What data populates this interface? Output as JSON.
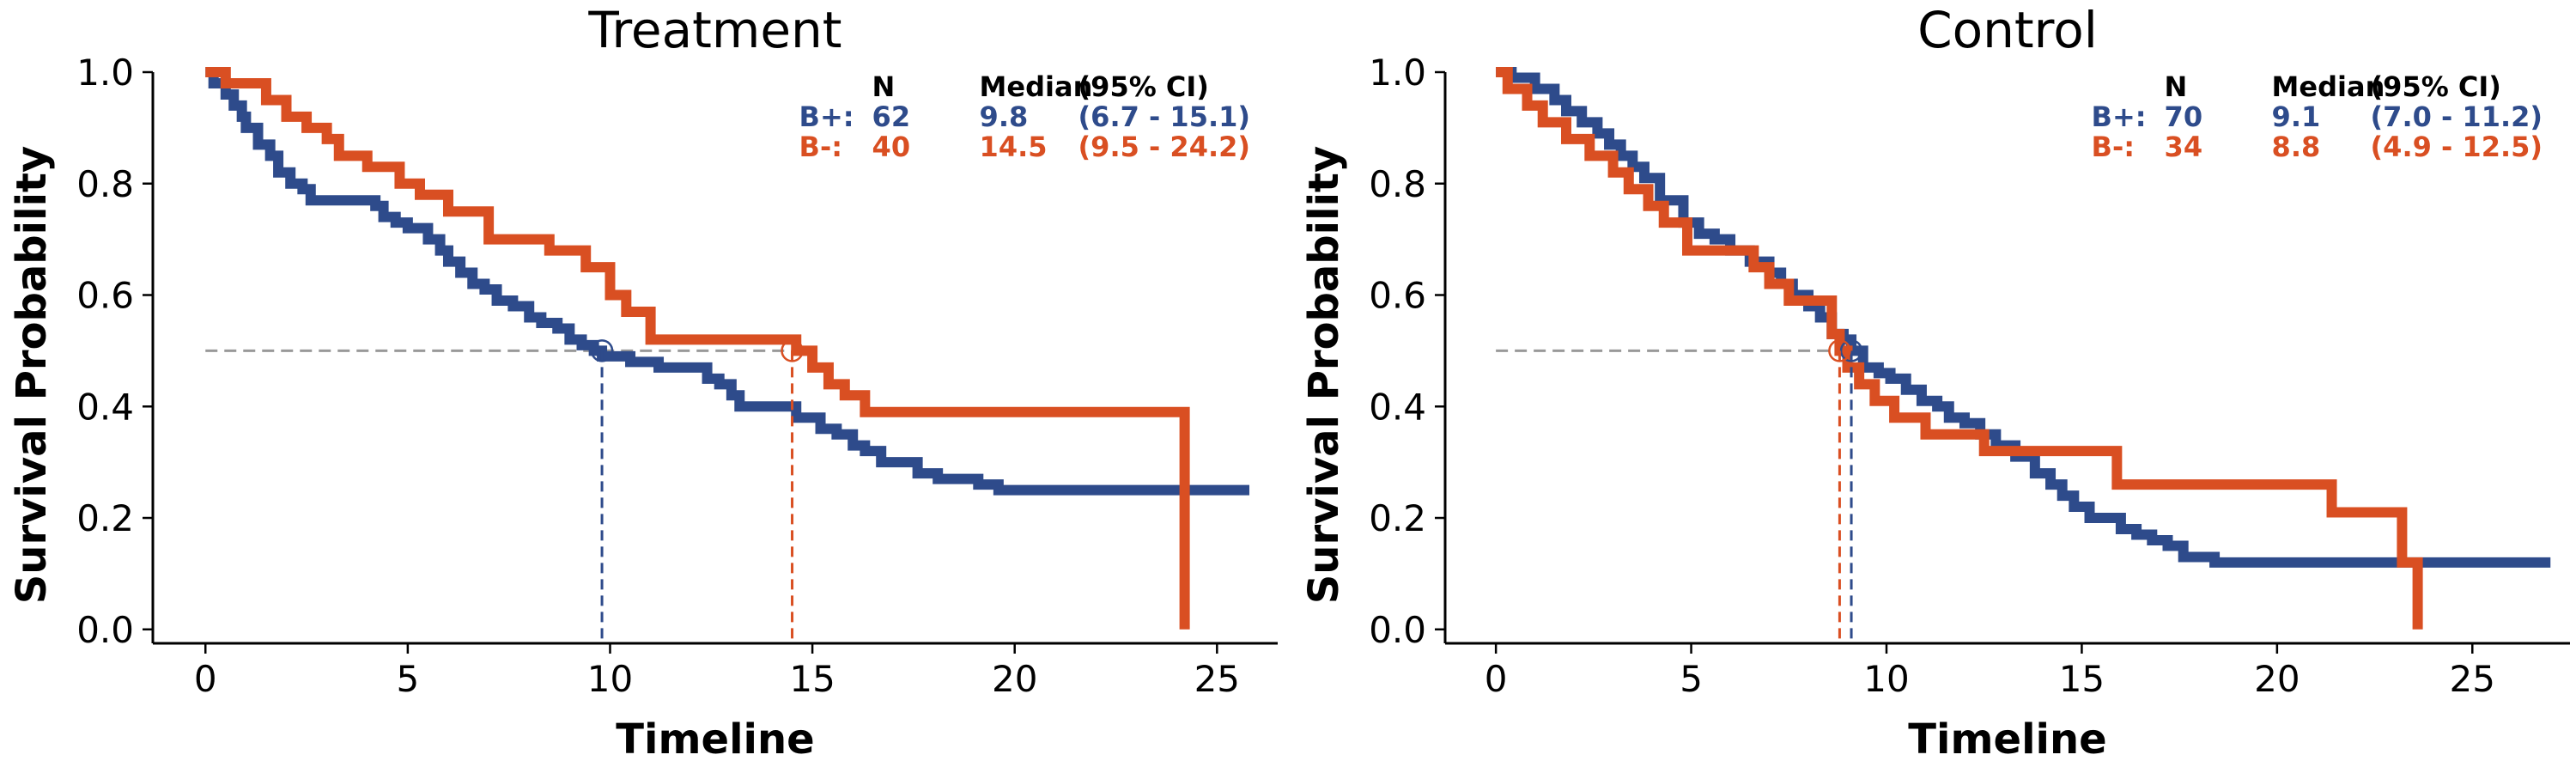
{
  "colors": {
    "b_plus": "#2e4b8b",
    "b_minus": "#d94f22",
    "reference": "#999999",
    "axis": "#000000"
  },
  "chart_data": [
    {
      "type": "line",
      "title": "Treatment",
      "xlabel": "Timeline",
      "ylabel": "Survival Probability",
      "xlim": [
        -1.3,
        26.5
      ],
      "ylim": [
        -0.025,
        1.0
      ],
      "xticks": [
        0,
        5,
        10,
        15,
        20,
        25
      ],
      "yticks": [
        0.0,
        0.2,
        0.4,
        0.6,
        0.8,
        1.0
      ],
      "grid": false,
      "legend_position": "top-right",
      "table_header": [
        "N",
        "Median",
        "(95% CI)"
      ],
      "series": [
        {
          "name": "B+",
          "color_key": "b_plus",
          "n": "62",
          "median": "9.8",
          "ci": "(6.7 - 15.1)",
          "median_value": 9.8,
          "x": [
            0,
            0.2,
            0.5,
            0.7,
            0.9,
            1.0,
            1.3,
            1.6,
            1.8,
            2.1,
            2.4,
            2.6,
            4.2,
            4.4,
            4.7,
            5.0,
            5.5,
            5.8,
            6.0,
            6.3,
            6.6,
            6.9,
            7.2,
            7.6,
            8.0,
            8.3,
            8.7,
            9.0,
            9.3,
            9.6,
            9.8,
            10.5,
            11.2,
            12.4,
            12.7,
            13.0,
            13.2,
            14.6,
            15.2,
            15.6,
            16.0,
            16.3,
            16.7,
            17.6,
            18.1,
            19.1,
            19.6,
            25.8
          ],
          "y": [
            1.0,
            0.98,
            0.96,
            0.94,
            0.92,
            0.9,
            0.87,
            0.85,
            0.82,
            0.8,
            0.79,
            0.77,
            0.76,
            0.74,
            0.73,
            0.72,
            0.7,
            0.68,
            0.66,
            0.64,
            0.62,
            0.61,
            0.59,
            0.58,
            0.56,
            0.55,
            0.54,
            0.52,
            0.51,
            0.5,
            0.49,
            0.48,
            0.47,
            0.45,
            0.44,
            0.42,
            0.4,
            0.38,
            0.36,
            0.35,
            0.33,
            0.32,
            0.3,
            0.28,
            0.27,
            0.26,
            0.25,
            0.25
          ]
        },
        {
          "name": "B-",
          "color_key": "b_minus",
          "n": "40",
          "median": "14.5",
          "ci": "(9.5 - 24.2)",
          "median_value": 14.5,
          "x": [
            0,
            0.5,
            1.5,
            2.0,
            2.5,
            3.0,
            3.3,
            4.0,
            4.8,
            5.3,
            6.0,
            7.0,
            8.5,
            9.4,
            10.0,
            10.4,
            11.0,
            14.6,
            15.0,
            15.4,
            15.8,
            16.3,
            24.2
          ],
          "y": [
            1.0,
            0.98,
            0.95,
            0.92,
            0.9,
            0.88,
            0.85,
            0.83,
            0.8,
            0.78,
            0.75,
            0.7,
            0.68,
            0.65,
            0.6,
            0.57,
            0.52,
            0.5,
            0.47,
            0.44,
            0.42,
            0.39,
            0.0
          ]
        }
      ]
    },
    {
      "type": "line",
      "title": "Control",
      "xlabel": "Timeline",
      "ylabel": "Survival Probability",
      "xlim": [
        -1.3,
        27.5
      ],
      "ylim": [
        -0.025,
        1.0
      ],
      "xticks": [
        0,
        5,
        10,
        15,
        20,
        25
      ],
      "yticks": [
        0.0,
        0.2,
        0.4,
        0.6,
        0.8,
        1.0
      ],
      "grid": false,
      "legend_position": "top-right",
      "table_header": [
        "N",
        "Median",
        "(95% CI)"
      ],
      "series": [
        {
          "name": "B+",
          "color_key": "b_plus",
          "n": "70",
          "median": "9.1",
          "ci": "(7.0 - 11.2)",
          "median_value": 9.1,
          "x": [
            0,
            0.4,
            1.0,
            1.5,
            1.8,
            2.2,
            2.6,
            2.9,
            3.2,
            3.5,
            3.8,
            4.2,
            4.8,
            5.2,
            5.6,
            6.0,
            6.5,
            7.0,
            7.3,
            7.6,
            8.0,
            8.3,
            8.6,
            8.9,
            9.1,
            9.4,
            9.8,
            10.1,
            10.5,
            10.9,
            11.3,
            11.6,
            12.0,
            12.4,
            12.8,
            13.3,
            13.8,
            14.2,
            14.5,
            14.8,
            15.2,
            16.0,
            16.4,
            16.8,
            17.2,
            17.6,
            18.4,
            27.0
          ],
          "y": [
            1.0,
            0.99,
            0.97,
            0.95,
            0.93,
            0.91,
            0.89,
            0.87,
            0.85,
            0.83,
            0.81,
            0.77,
            0.73,
            0.71,
            0.7,
            0.68,
            0.66,
            0.64,
            0.62,
            0.6,
            0.58,
            0.56,
            0.53,
            0.52,
            0.5,
            0.47,
            0.46,
            0.45,
            0.43,
            0.41,
            0.4,
            0.38,
            0.37,
            0.35,
            0.33,
            0.31,
            0.28,
            0.26,
            0.24,
            0.22,
            0.2,
            0.18,
            0.17,
            0.16,
            0.15,
            0.13,
            0.12,
            0.12
          ]
        },
        {
          "name": "B-",
          "color_key": "b_minus",
          "n": "34",
          "median": "8.8",
          "ci": "(4.9 - 12.5)",
          "median_value": 8.8,
          "x": [
            0,
            0.3,
            0.8,
            1.2,
            1.8,
            2.4,
            3.0,
            3.4,
            3.9,
            4.3,
            4.9,
            6.6,
            7.0,
            7.5,
            8.6,
            8.8,
            9.0,
            9.3,
            9.7,
            10.2,
            11.0,
            12.5,
            15.9,
            21.4,
            23.2,
            23.6
          ],
          "y": [
            1.0,
            0.97,
            0.94,
            0.91,
            0.88,
            0.85,
            0.82,
            0.79,
            0.76,
            0.73,
            0.68,
            0.65,
            0.62,
            0.59,
            0.53,
            0.5,
            0.47,
            0.44,
            0.41,
            0.38,
            0.35,
            0.32,
            0.26,
            0.21,
            0.12,
            0.0
          ]
        }
      ]
    }
  ]
}
